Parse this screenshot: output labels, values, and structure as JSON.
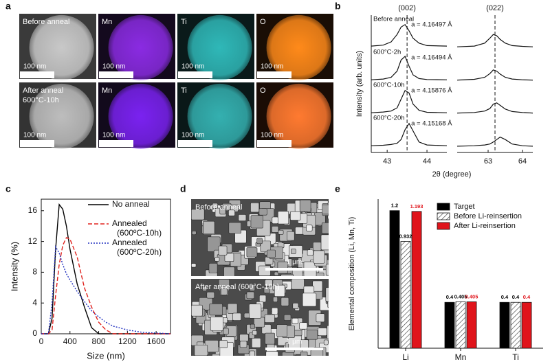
{
  "images": {
    "a": {
      "label": "a",
      "tiles": [
        {
          "label": "Before anneal",
          "scale_bar": "100 nm",
          "color": "#c8c8c8",
          "background": "#3a3a3a"
        },
        {
          "label": "Mn",
          "scale_bar": "100 nm",
          "color": "#8a2be2",
          "background": "#140a1e"
        },
        {
          "label": "Ti",
          "scale_bar": "100 nm",
          "color": "#2fb8b8",
          "background": "#0a1a1a"
        },
        {
          "label": "O",
          "scale_bar": "100 nm",
          "color": "#ff8a1a",
          "background": "#1a0e05"
        },
        {
          "label": "After anneal",
          "sublabel": "600°C-10h",
          "scale_bar": "100 nm",
          "color": "#bdbdbd",
          "background": "#333333"
        },
        {
          "label": "Mn",
          "scale_bar": "100 nm",
          "color": "#7a22f0",
          "background": "#120a1c"
        },
        {
          "label": "Ti",
          "scale_bar": "100 nm",
          "color": "#34b0b0",
          "background": "#0a1818"
        },
        {
          "label": "O",
          "scale_bar": "100 nm",
          "color": "#ff7a30",
          "background": "#1a0c05"
        }
      ]
    },
    "d": {
      "label": "d",
      "tiles": [
        {
          "label": "Before anneal",
          "scale_bar": "1 μm"
        },
        {
          "label": "After anneal (600°C-10h)",
          "scale_bar": "1 μm"
        }
      ]
    }
  },
  "chart_data": [
    {
      "type": "xrd",
      "label": "b",
      "xlabel": "2θ (degree)",
      "ylabel": "Intensity (arb. units)",
      "color": "#111111",
      "segments": [
        {
          "peak_label": "(002)",
          "xlim": [
            42.6,
            44.5
          ],
          "xticks": [
            43,
            44
          ],
          "reference_line": 43.5,
          "x": [
            42.6,
            42.9,
            43.1,
            43.25,
            43.35,
            43.45,
            43.55,
            43.65,
            43.8,
            44.0,
            44.5
          ]
        },
        {
          "peak_label": "(022)",
          "xlim": [
            62.1,
            64.3
          ],
          "xticks": [
            63,
            64
          ],
          "reference_line": 63.2,
          "x": [
            62.1,
            62.6,
            62.9,
            63.05,
            63.15,
            63.25,
            63.35,
            63.5,
            63.7,
            64.0,
            64.3
          ]
        }
      ],
      "series": [
        {
          "name": "Before anneal",
          "annotation": "a = 4.16497 Å",
          "values": [
            [
              0.08,
              0.12,
              0.25,
              0.55,
              0.85,
              0.95,
              0.7,
              0.4,
              0.2,
              0.1,
              0.08
            ],
            [
              0.05,
              0.08,
              0.2,
              0.4,
              0.55,
              0.5,
              0.35,
              0.2,
              0.1,
              0.07,
              0.05
            ]
          ]
        },
        {
          "name": "600°C-2h",
          "annotation": "a = 4.16494 Å",
          "values": [
            [
              0.05,
              0.08,
              0.15,
              0.4,
              0.85,
              1.0,
              0.6,
              0.25,
              0.1,
              0.06,
              0.05
            ],
            [
              0.04,
              0.07,
              0.15,
              0.3,
              0.45,
              0.4,
              0.28,
              0.15,
              0.08,
              0.05,
              0.04
            ]
          ]
        },
        {
          "name": "600°C-10h",
          "annotation": "a = 4.15876 Å",
          "values": [
            [
              0.05,
              0.08,
              0.12,
              0.25,
              0.6,
              0.95,
              0.85,
              0.4,
              0.15,
              0.07,
              0.05
            ],
            [
              0.04,
              0.06,
              0.12,
              0.22,
              0.4,
              0.45,
              0.35,
              0.2,
              0.1,
              0.06,
              0.04
            ]
          ]
        },
        {
          "name": "600°C-20h",
          "annotation": "a = 4.15168 Å",
          "values": [
            [
              0.05,
              0.07,
              0.1,
              0.15,
              0.3,
              0.7,
              0.95,
              0.65,
              0.2,
              0.08,
              0.05
            ],
            [
              0.03,
              0.05,
              0.08,
              0.12,
              0.2,
              0.3,
              0.4,
              0.3,
              0.12,
              0.05,
              0.03
            ]
          ]
        }
      ]
    },
    {
      "type": "line",
      "label": "c",
      "xlabel": "Size (nm)",
      "ylabel": "Intensity (%)",
      "x": [
        0,
        100,
        150,
        200,
        250,
        300,
        350,
        400,
        500,
        600,
        700,
        800,
        900,
        1000,
        1200,
        1400,
        1600,
        1800
      ],
      "xlim": [
        0,
        1800
      ],
      "xticks": [
        0,
        400,
        800,
        1200,
        1600
      ],
      "ylim": [
        0,
        17.5
      ],
      "yticks": [
        0,
        4,
        8,
        12,
        16
      ],
      "series": [
        {
          "name": "No anneal",
          "color": "#000000",
          "linestyle": "solid",
          "values": [
            0,
            0,
            2,
            11,
            16.8,
            16.2,
            14,
            11,
            6.5,
            3.5,
            0.8,
            0,
            0,
            0,
            0,
            0,
            0,
            0
          ]
        },
        {
          "name": "Annealed (600ºC-10h)",
          "color": "#e0201b",
          "linestyle": "dashed",
          "values": [
            0,
            0,
            0.5,
            5,
            9,
            11.5,
            12.5,
            12.3,
            10,
            6,
            3.5,
            1.5,
            0.5,
            0,
            0,
            0,
            0,
            0
          ]
        },
        {
          "name": "Annealed (600ºC-20h)",
          "color": "#1f2fbf",
          "linestyle": "dotted",
          "values": [
            0,
            0,
            4,
            11.3,
            10.5,
            9,
            7.8,
            7,
            5.5,
            4.2,
            3,
            2.2,
            1.5,
            1,
            0.5,
            0.2,
            0.1,
            0
          ]
        }
      ]
    },
    {
      "type": "bar",
      "label": "e",
      "ylabel": "Elemental composition (Li, Mn, Ti)",
      "categories": [
        "Li",
        "Mn",
        "Ti"
      ],
      "ylim": [
        0,
        1.3
      ],
      "series": [
        {
          "name": "Target",
          "color": "#000000",
          "label_color": "#000000",
          "values": [
            1.2,
            0.4,
            0.4
          ]
        },
        {
          "name": "Before Li-reinsertion",
          "color": "#ffffff",
          "hatch": true,
          "label_color": "#000000",
          "values": [
            0.932,
            0.405,
            0.4
          ]
        },
        {
          "name": "After Li-reinsertion",
          "color": "#e0141b",
          "label_color": "#e0141b",
          "values": [
            1.193,
            0.405,
            0.4
          ]
        }
      ]
    }
  ]
}
